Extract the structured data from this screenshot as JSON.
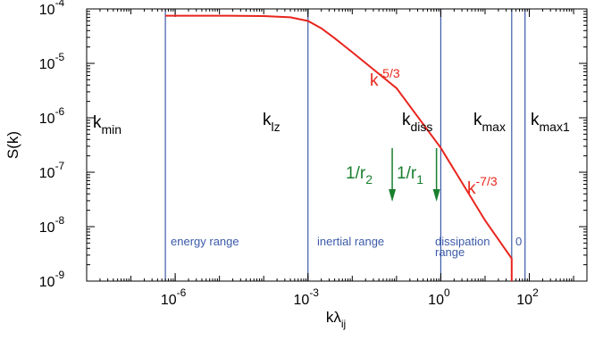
{
  "chart_data": {
    "type": "line",
    "xlabel": {
      "base": "kλ",
      "sub": "ij"
    },
    "ylabel": "S(k)",
    "x_scale": "log",
    "y_scale": "log",
    "xlim": [
      1e-08,
      2000
    ],
    "ylim": [
      1e-09,
      0.0001
    ],
    "x_ticks": [
      {
        "value": 1e-06,
        "base": "10",
        "exp": "-6"
      },
      {
        "value": 0.001,
        "base": "10",
        "exp": "-3"
      },
      {
        "value": 1,
        "base": "10",
        "exp": "0"
      },
      {
        "value": 100,
        "base": "10",
        "exp": "2"
      }
    ],
    "y_ticks": [
      {
        "value": 0.0001,
        "base": "10",
        "exp": "-4"
      },
      {
        "value": 1e-05,
        "base": "10",
        "exp": "-5"
      },
      {
        "value": 1e-06,
        "base": "10",
        "exp": "-6"
      },
      {
        "value": 1e-07,
        "base": "10",
        "exp": "-7"
      },
      {
        "value": 1e-08,
        "base": "10",
        "exp": "-8"
      },
      {
        "value": 1e-09,
        "base": "10",
        "exp": "-9"
      }
    ],
    "series": [
      {
        "color": "#e8251d",
        "x": [
          6e-07,
          1e-05,
          0.0001,
          0.0004,
          0.001,
          0.002,
          0.004,
          0.01,
          0.1,
          1,
          10,
          40,
          40
        ],
        "y": [
          7.5e-05,
          7.5e-05,
          7.4e-05,
          7e-05,
          6e-05,
          4.4e-05,
          2.9e-05,
          1.6e-05,
          3.5e-06,
          2.8e-07,
          1.3e-08,
          2.6e-09,
          1e-09
        ]
      }
    ],
    "vertical_lines": [
      {
        "x": 6e-07,
        "label_base": "k",
        "label_sub": "min"
      },
      {
        "x": 0.001,
        "label_base": "k",
        "label_sub": "lz"
      },
      {
        "x": 1,
        "label_base": "k",
        "label_sub": "diss"
      },
      {
        "x": 40,
        "label_base": "k",
        "label_sub": "max"
      },
      {
        "x": 80,
        "label_base": "k",
        "label_sub": "max1"
      }
    ],
    "annotations": {
      "slope1": {
        "base": "k",
        "exp": "-5/3",
        "color": "#e8251d"
      },
      "slope2": {
        "base": "k",
        "exp": "-7/3",
        "color": "#e8251d"
      },
      "arrow_r2": {
        "x": 0.08,
        "num": "1/r",
        "sub": "2",
        "color": "#1a7f2e"
      },
      "arrow_r1": {
        "x": 0.8,
        "num": "1/r",
        "sub": "1",
        "color": "#1a7f2e"
      }
    },
    "ranges": [
      {
        "label": "energy range",
        "color": "#3b5aa8"
      },
      {
        "label": "inertial range",
        "color": "#3b5aa8"
      },
      {
        "label": "dissipation",
        "label2": "range",
        "color": "#3b5aa8"
      },
      {
        "label": "0",
        "color": "#3b5aa8"
      }
    ],
    "axis_color": "#000000",
    "vline_color": "#3b5aa8",
    "grid": false
  }
}
